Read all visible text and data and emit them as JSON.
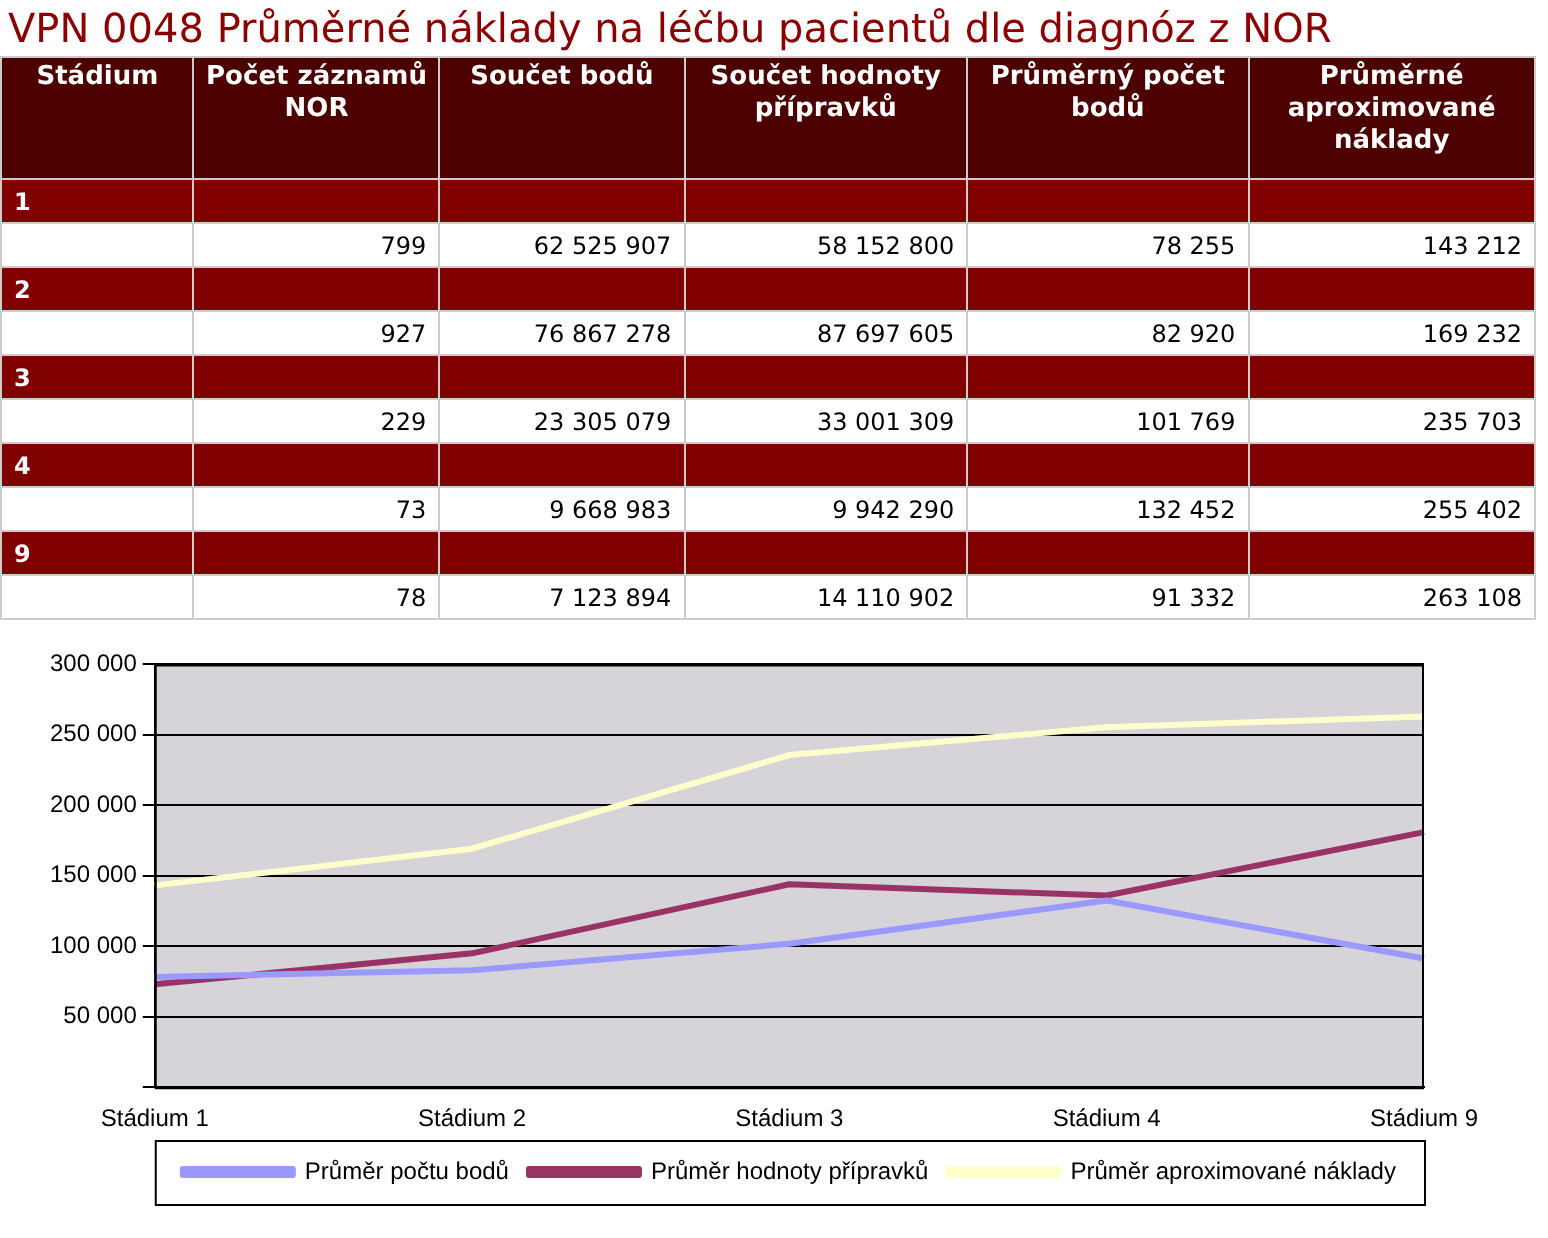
{
  "chart_data": [
    {
      "type": "heatmap",
      "title": "VPN 0048 Průměrné náklady na léčbu pacientů dle diagnóz z NOR",
      "ylabel": "Stádium",
      "categories": [
        "Počet záznamů NOR",
        "Součet bodů",
        "Součet hodnoty přípravků",
        "Průměrný počet bodů",
        "Průměrné aproximované náklady"
      ],
      "y_categories": [
        "1",
        null,
        "2",
        null,
        "3",
        null,
        "4",
        null,
        "9",
        null
      ],
      "cells": [
        [
          null,
          null,
          null,
          null,
          null
        ],
        [
          799,
          62525907,
          58152800,
          78255,
          143212
        ],
        [
          null,
          null,
          null,
          null,
          null
        ],
        [
          927,
          76867278,
          87697605,
          82920,
          169232
        ],
        [
          null,
          null,
          null,
          null,
          null
        ],
        [
          229,
          23305079,
          33001309,
          101769,
          235703
        ],
        [
          null,
          null,
          null,
          null,
          null
        ],
        [
          73,
          9668983,
          9942290,
          132452,
          255402
        ],
        [
          null,
          null,
          null,
          null,
          null
        ],
        [
          78,
          7123894,
          14110902,
          91332,
          263108
        ]
      ],
      "data_labels": true
    },
    {
      "type": "line",
      "categories": [
        "Stádium 1",
        "Stádium 2",
        "Stádium 3",
        "Stádium 4",
        "Stádium 9"
      ],
      "series": [
        {
          "name": "Průměr počtu bodů",
          "color": "#9999ff",
          "values": [
            78255,
            82920,
            101769,
            132452,
            91332
          ]
        },
        {
          "name": "Průměr hodnoty přípravků",
          "color": "#993366",
          "values": [
            73000,
            95000,
            144000,
            136000,
            181000
          ]
        },
        {
          "name": "Průměr aproximované náklady",
          "color": "#ffffcc",
          "values": [
            143212,
            169232,
            235703,
            255402,
            263108
          ]
        }
      ],
      "ylim": [
        0,
        300000
      ],
      "yticks": [
        {
          "value": 0,
          "label": null
        },
        {
          "value": 50000,
          "label": "50 000"
        },
        {
          "value": 100000,
          "label": "100 000"
        },
        {
          "value": 150000,
          "label": "150 000"
        },
        {
          "value": 200000,
          "label": "200 000"
        },
        {
          "value": 250000,
          "label": "250 000"
        },
        {
          "value": 300000,
          "label": "300 000"
        }
      ],
      "grid": "y",
      "legend": "bottom",
      "marker": "none",
      "line_style": "solid"
    }
  ]
}
